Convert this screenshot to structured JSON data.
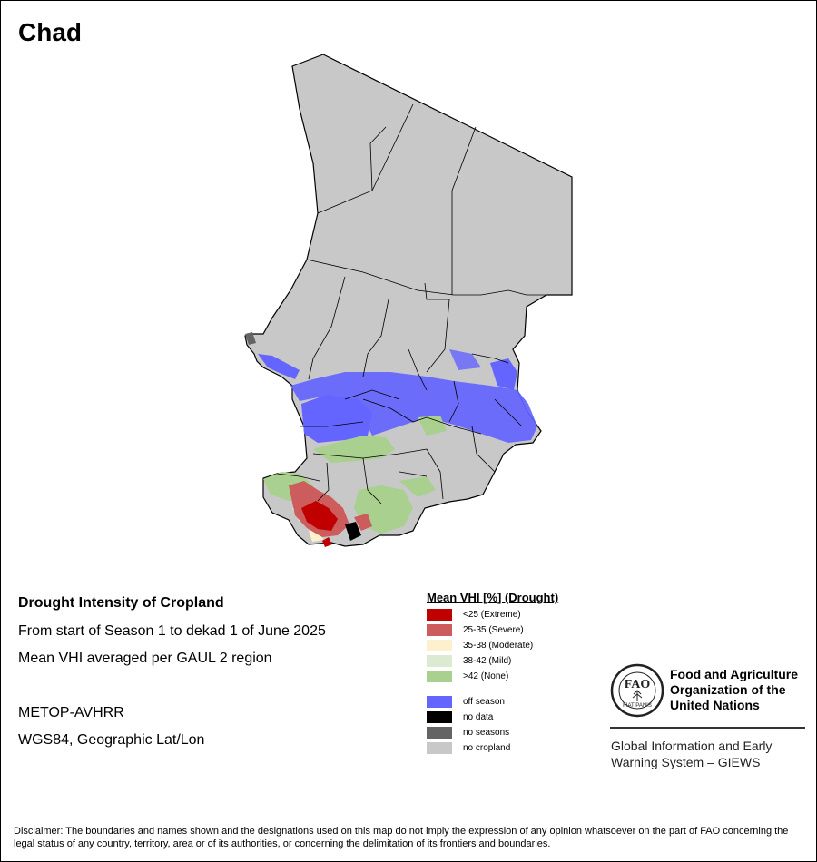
{
  "title": "Chad",
  "info": {
    "heading": "Drought Intensity of Cropland",
    "period": "From start of Season 1 to dekad 1 of June 2025",
    "method": "Mean VHI averaged per GAUL 2 region",
    "sensor": "METOP-AVHRR",
    "projection": "WGS84, Geographic Lat/Lon"
  },
  "legend": {
    "title": "Mean VHI [%] (Drought)",
    "items": [
      {
        "label": "<25    (Extreme)",
        "color": "#c00000"
      },
      {
        "label": "25-35 (Severe)",
        "color": "#cd5c5c"
      },
      {
        "label": "35-38 (Moderate)",
        "color": "#fdf0cc"
      },
      {
        "label": "38-42 (Mild)",
        "color": "#dcead2"
      },
      {
        "label": ">42    (None)",
        "color": "#a9d08e"
      },
      {
        "label": "off season",
        "color": "#6464ff"
      },
      {
        "label": "no data",
        "color": "#000000"
      },
      {
        "label": "no seasons",
        "color": "#646464"
      },
      {
        "label": "no cropland",
        "color": "#c8c8c8"
      }
    ]
  },
  "logo": {
    "letters": "FAO",
    "motto": "FIAT PANIS",
    "org_name": [
      "Food and Agriculture",
      "Organization of the",
      "United Nations"
    ],
    "system": [
      "Global Information and Early",
      "Warning System – GIEWS"
    ]
  },
  "disclaimer": "Disclaimer: The boundaries and names shown and the designations used on this map do not imply the expression of any opinion whatsoever on the part of FAO concerning the legal status of any country, territory, area or of its authorities, or concerning the delimitation of its frontiers and boundaries."
}
